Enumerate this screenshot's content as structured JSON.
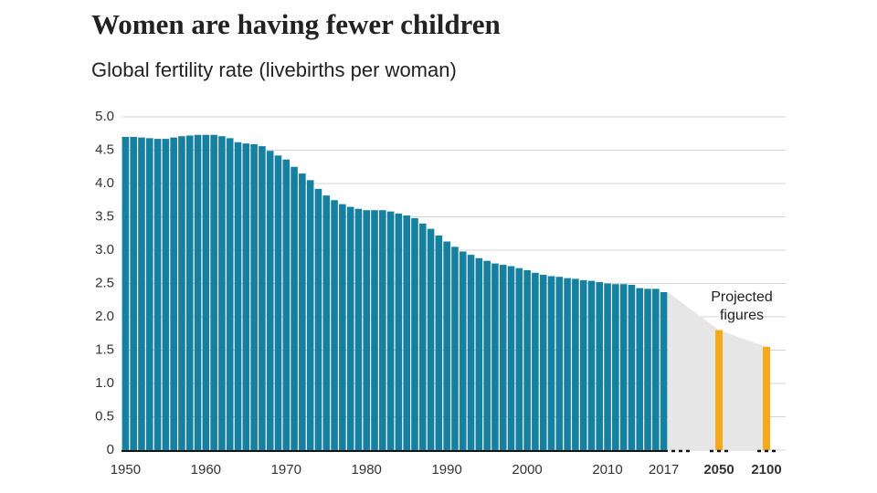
{
  "chart_data": {
    "type": "bar",
    "title": "Women are having fewer children",
    "subtitle": "Global fertility rate (livebirths per woman)",
    "categories": [
      "1950",
      null,
      null,
      null,
      null,
      null,
      null,
      null,
      null,
      null,
      "1960",
      null,
      null,
      null,
      null,
      null,
      null,
      null,
      null,
      null,
      "1970",
      null,
      null,
      null,
      null,
      null,
      null,
      null,
      null,
      null,
      "1980",
      null,
      null,
      null,
      null,
      null,
      null,
      null,
      null,
      null,
      "1990",
      null,
      null,
      null,
      null,
      null,
      null,
      null,
      null,
      null,
      "2000",
      null,
      null,
      null,
      null,
      null,
      null,
      null,
      null,
      null,
      "2010",
      null,
      null,
      null,
      null,
      null,
      null,
      "2017"
    ],
    "values": [
      4.7,
      4.7,
      4.69,
      4.68,
      4.67,
      4.67,
      4.69,
      4.71,
      4.72,
      4.73,
      4.73,
      4.73,
      4.71,
      4.68,
      4.62,
      4.6,
      4.59,
      4.56,
      4.49,
      4.42,
      4.36,
      4.25,
      4.15,
      4.05,
      3.92,
      3.82,
      3.75,
      3.69,
      3.65,
      3.62,
      3.6,
      3.6,
      3.6,
      3.58,
      3.55,
      3.52,
      3.48,
      3.4,
      3.32,
      3.22,
      3.13,
      3.05,
      2.98,
      2.93,
      2.88,
      2.84,
      2.8,
      2.78,
      2.76,
      2.73,
      2.7,
      2.66,
      2.63,
      2.61,
      2.6,
      2.58,
      2.57,
      2.55,
      2.54,
      2.52,
      2.5,
      2.49,
      2.49,
      2.48,
      2.43,
      2.42,
      2.42,
      2.37
    ],
    "color": "#15809f",
    "projections": {
      "categories": [
        "2050",
        "2100"
      ],
      "values": [
        1.8,
        1.55
      ],
      "color": "#f7a81b"
    },
    "annotation": [
      "Projected",
      "figures"
    ],
    "ylim": [
      0,
      5
    ],
    "yticks": [
      0,
      0.5,
      {
        "value": 1,
        "label": "1.0"
      },
      1.5,
      {
        "value": 2,
        "label": "2.0"
      },
      2.5,
      {
        "value": 3,
        "label": "3.0"
      },
      3.5,
      {
        "value": 4,
        "label": "4.0"
      },
      4.5,
      {
        "value": 5,
        "label": "5.0"
      }
    ],
    "grid": true
  }
}
